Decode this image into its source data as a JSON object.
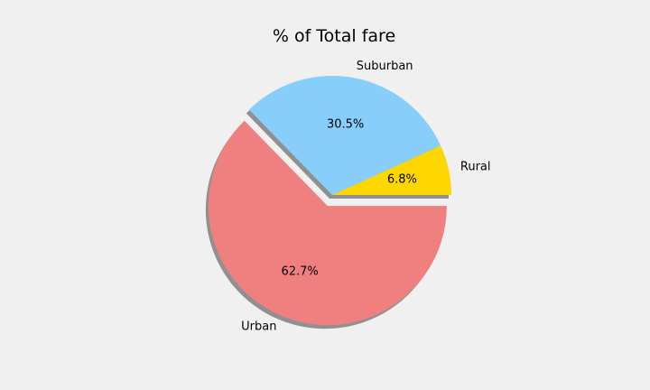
{
  "chart_data": {
    "type": "pie",
    "title": "% of Total fare",
    "categories": [
      "Rural",
      "Suburban",
      "Urban"
    ],
    "values": [
      6.8,
      30.5,
      62.7
    ],
    "value_labels": [
      "6.8%",
      "30.5%",
      "62.7%"
    ],
    "colors": [
      "#ffd700",
      "#87cefa",
      "#f08080"
    ],
    "explode": [
      0,
      0,
      0.1
    ],
    "shadow": true,
    "start_angle_deg": 0,
    "direction": "counterclockwise",
    "background": "#f0f0f0"
  }
}
